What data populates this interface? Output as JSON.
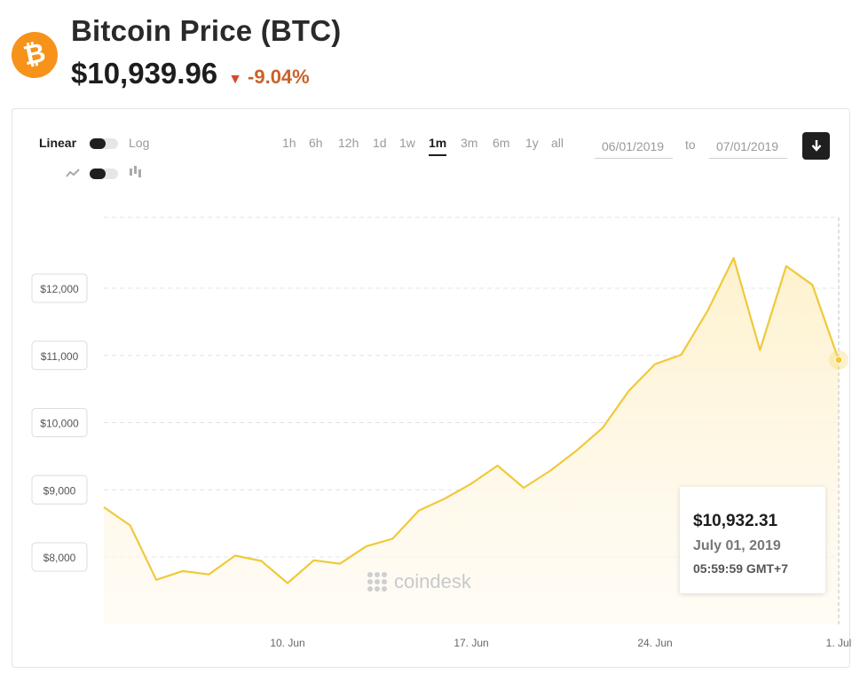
{
  "header": {
    "logo_symbol": "₿",
    "title": "Bitcoin Price (BTC)",
    "price": "$10,939.96",
    "change_icon": "down-triangle-icon",
    "change": "-9.04%",
    "change_color": "#c9622b"
  },
  "controls": {
    "scale_left": "Linear",
    "scale_right": "Log",
    "style_left_icon": "line-chart-icon",
    "style_right_icon": "candlestick-icon",
    "ranges": [
      "1h",
      "6h",
      "12h",
      "1d",
      "1w",
      "1m",
      "3m",
      "6m",
      "1y",
      "all"
    ],
    "active_range": "1m",
    "date_from": "06/01/2019",
    "date_to_label": "to",
    "date_to": "07/01/2019",
    "download_icon": "download-icon"
  },
  "chart_data": {
    "type": "area",
    "title": "",
    "xlabel": "",
    "ylabel": "",
    "x_start": "2019-06-03",
    "x_ticks": [
      {
        "label": "10. Jun",
        "date": "2019-06-10"
      },
      {
        "label": "17. Jun",
        "date": "2019-06-17"
      },
      {
        "label": "24. Jun",
        "date": "2019-06-24"
      },
      {
        "label": "1. Jul",
        "date": "2019-07-01"
      }
    ],
    "y_ticks": [
      {
        "label": "$8,000",
        "value": 8000
      },
      {
        "label": "$9,000",
        "value": 9000
      },
      {
        "label": "$10,000",
        "value": 10000
      },
      {
        "label": "$11,000",
        "value": 11000
      },
      {
        "label": "$12,000",
        "value": 12000
      }
    ],
    "ylim": [
      7000,
      13000
    ],
    "grid": true,
    "line_color": "#f0c93a",
    "series": [
      {
        "x": [
          "2019-06-03",
          "2019-06-04",
          "2019-06-05",
          "2019-06-06",
          "2019-06-07",
          "2019-06-08",
          "2019-06-09",
          "2019-06-10",
          "2019-06-11",
          "2019-06-12",
          "2019-06-13",
          "2019-06-14",
          "2019-06-15",
          "2019-06-16",
          "2019-06-17",
          "2019-06-18",
          "2019-06-19",
          "2019-06-20",
          "2019-06-21",
          "2019-06-22",
          "2019-06-23",
          "2019-06-24",
          "2019-06-25",
          "2019-06-26",
          "2019-06-27",
          "2019-06-28",
          "2019-06-29",
          "2019-06-30",
          "2019-07-01"
        ],
        "values": [
          8740,
          8470,
          7660,
          7790,
          7740,
          8020,
          7940,
          7610,
          7950,
          7900,
          8160,
          8270,
          8690,
          8870,
          9090,
          9360,
          9030,
          9280,
          9580,
          9920,
          10470,
          10870,
          11010,
          11660,
          12450,
          11080,
          12330,
          12050,
          10932.31
        ]
      }
    ],
    "tooltip": {
      "price": "$10,932.31",
      "date": "July 01, 2019",
      "time": "05:59:59 GMT+7"
    },
    "watermark": "coindesk"
  }
}
